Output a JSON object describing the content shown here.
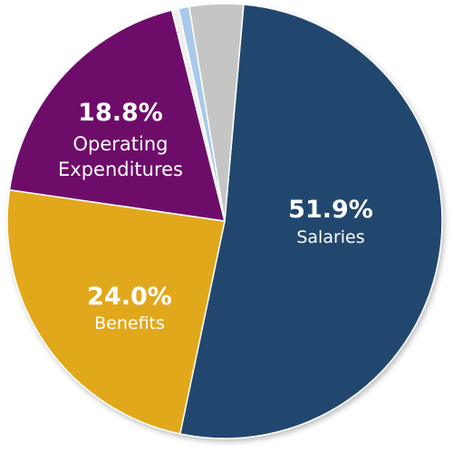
{
  "chart_data": {
    "type": "pie",
    "start_angle_deg": 5,
    "slices": [
      {
        "label": "Salaries",
        "percent_label": "51.9%",
        "value": 51.9,
        "color": "#24476e"
      },
      {
        "label": "Benefits",
        "percent_label": "24.0%",
        "value": 24.0,
        "color": "#e1a81d"
      },
      {
        "label": "Operating Expenditures",
        "percent_label": "18.8%",
        "value": 18.8,
        "color": "#6e1069"
      },
      {
        "label": "",
        "percent_label": "",
        "value": 0.5,
        "color": "#eeeeee"
      },
      {
        "label": "",
        "percent_label": "",
        "value": 0.8,
        "color": "#a9c9ea"
      },
      {
        "label": "",
        "percent_label": "",
        "value": 4.0,
        "color": "#c5c5c5"
      }
    ]
  }
}
